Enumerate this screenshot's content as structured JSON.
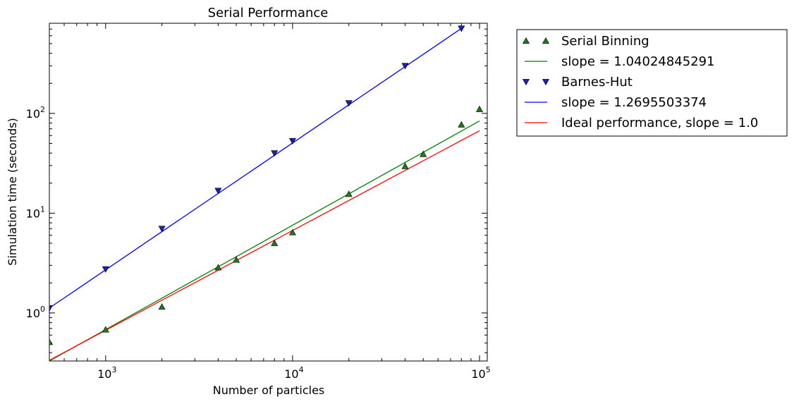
{
  "chart_data": {
    "type": "scatter",
    "title": "Serial Performance",
    "xlabel": "Number of particles",
    "ylabel": "Simulation time (seconds)",
    "xscale": "log",
    "yscale": "log",
    "xlim": [
      500,
      110000
    ],
    "ylim": [
      0.33,
      800
    ],
    "grid": false,
    "legend_position": "outside-right",
    "x_ticks": [
      {
        "value": 1000,
        "base": "10",
        "exp": "3"
      },
      {
        "value": 10000,
        "base": "10",
        "exp": "4"
      },
      {
        "value": 100000,
        "base": "10",
        "exp": "5"
      }
    ],
    "y_ticks": [
      {
        "value": 1,
        "base": "10",
        "exp": "0"
      },
      {
        "value": 10,
        "base": "10",
        "exp": "1"
      },
      {
        "value": 100,
        "base": "10",
        "exp": "2"
      }
    ],
    "series": [
      {
        "name": "Serial Binning",
        "kind": "points",
        "marker": "triangle-up",
        "color": "#1f7a1f",
        "x": [
          500,
          1000,
          2000,
          4000,
          5000,
          8000,
          10000,
          20000,
          40000,
          50000,
          80000,
          100000
        ],
        "y": [
          0.51,
          0.68,
          1.15,
          2.85,
          3.4,
          5.0,
          6.4,
          15.5,
          29.5,
          39.0,
          77.0,
          110.0
        ]
      },
      {
        "name": "slope = 1.04024845291",
        "kind": "line",
        "color": "#008000",
        "x": [
          500,
          100000
        ],
        "y": [
          0.33,
          84.0
        ]
      },
      {
        "name": "Barnes-Hut",
        "kind": "points",
        "marker": "triangle-down",
        "color": "#1f1fb4",
        "x": [
          500,
          1000,
          2000,
          4000,
          8000,
          10000,
          20000,
          40000,
          80000
        ],
        "y": [
          1.12,
          2.75,
          7.0,
          16.8,
          40.0,
          53.0,
          127.0,
          300.0,
          710.0
        ]
      },
      {
        "name": "slope = 1.2695503374",
        "kind": "line",
        "color": "#0000ff",
        "x": [
          500,
          80000
        ],
        "y": [
          1.12,
          710.0
        ]
      },
      {
        "name": "Ideal performance, slope = 1.0",
        "kind": "line",
        "color": "#ff0000",
        "x": [
          500,
          100000
        ],
        "y": [
          0.335,
          67.0
        ]
      }
    ]
  }
}
